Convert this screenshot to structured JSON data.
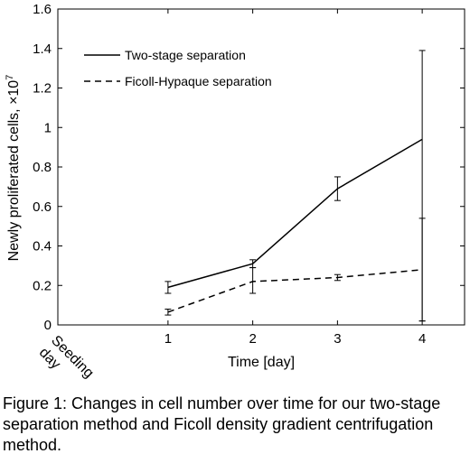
{
  "chart_data": {
    "type": "line",
    "xlabel": "Time [day]",
    "ylabel_main": "Newly proliferated cells, ×10",
    "ylabel_exp": "7",
    "xlim": [
      -0.3,
      4.5
    ],
    "ylim": [
      0,
      1.6
    ],
    "y_ticks": [
      0,
      0.2,
      0.4,
      0.6,
      0.8,
      1,
      1.2,
      1.4,
      1.6
    ],
    "y_tick_labels": [
      "0",
      "0.2",
      "0.4",
      "0.6",
      "0.8",
      "1",
      "1.2",
      "1.4",
      "1.6"
    ],
    "x_ticks": [
      1,
      2,
      3,
      4
    ],
    "x_tick_labels": [
      "1",
      "2",
      "3",
      "4"
    ],
    "seeding_label_line1": "Seeding",
    "seeding_label_line2": "day",
    "legend_position": "top-left",
    "grid": false,
    "series": [
      {
        "name": "Two-stage separation",
        "style": "solid",
        "x": [
          1,
          2,
          3,
          4
        ],
        "y": [
          0.19,
          0.31,
          0.69,
          0.94
        ],
        "err_low": [
          0.03,
          0.02,
          0.06,
          0.92
        ],
        "err_high": [
          0.03,
          0.02,
          0.06,
          0.45
        ]
      },
      {
        "name": "Ficoll-Hypaque separation",
        "style": "dashed",
        "x": [
          1,
          2,
          3,
          4
        ],
        "y": [
          0.065,
          0.22,
          0.24,
          0.28
        ],
        "err_low": [
          0.015,
          0.06,
          0.015,
          0.26
        ],
        "err_high": [
          0.015,
          0.07,
          0.015,
          0.26
        ]
      }
    ]
  },
  "caption": "Figure 1: Changes in cell number over time for our two-stage separation method and Ficoll density gradient centrifugation method."
}
